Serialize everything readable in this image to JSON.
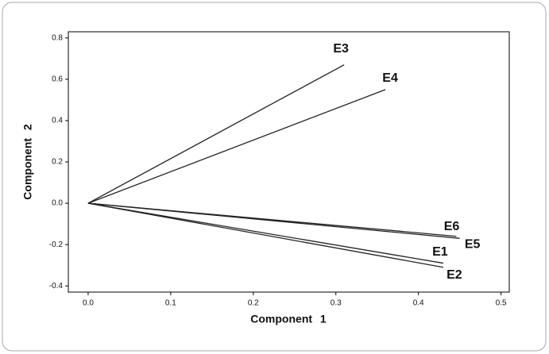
{
  "chart_data": {
    "type": "loading",
    "xlabel": "Component 1",
    "ylabel": "Component 2",
    "series": [
      {
        "name": "E1",
        "x": 0.43,
        "y": -0.29
      },
      {
        "name": "E2",
        "x": 0.43,
        "y": -0.31
      },
      {
        "name": "E3",
        "x": 0.31,
        "y": 0.67
      },
      {
        "name": "E4",
        "x": 0.36,
        "y": 0.55
      },
      {
        "name": "E5",
        "x": 0.45,
        "y": -0.17
      },
      {
        "name": "E6",
        "x": 0.446,
        "y": -0.16
      }
    ],
    "color": "#222222",
    "xlim": [
      -0.024,
      0.51
    ],
    "ylim": [
      -0.43,
      0.83
    ],
    "xticks": [
      {
        "value": 0,
        "label": "0.0"
      },
      0.1,
      0.2,
      0.3,
      0.4,
      0.5
    ],
    "yticks": [
      -0.4,
      -0.2,
      {
        "value": 0,
        "label": "0.0"
      },
      0.2,
      0.4,
      0.6,
      0.8
    ]
  }
}
